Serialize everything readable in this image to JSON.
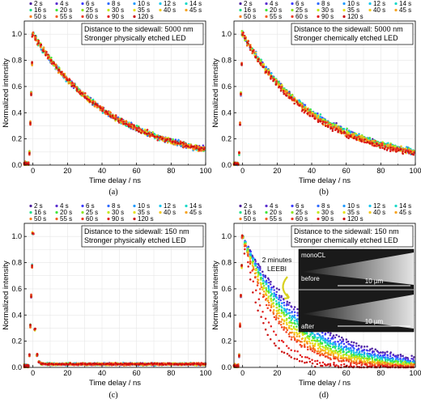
{
  "chart_data": [
    {
      "type": "scatter",
      "panel": "(a)",
      "xlabel": "Time delay / ns",
      "ylabel": "Normalized intensity",
      "xlim": [
        -5,
        100
      ],
      "ylim": [
        0,
        1.1
      ],
      "xticks": [
        "0",
        "20",
        "40",
        "60",
        "80",
        "100"
      ],
      "yticks": [
        "0.0",
        "0.2",
        "0.4",
        "0.6",
        "0.8",
        "1.0"
      ],
      "grid": true,
      "annotation": [
        "Distance to the sidewall: 5000 nm",
        "Stronger physically etched LED"
      ],
      "series_names": [
        "2 s",
        "4 s",
        "6 s",
        "8 s",
        "10 s",
        "12 s",
        "14 s",
        "16 s",
        "20 s",
        "25 s",
        "30 s",
        "35 s",
        "40 s",
        "45 s",
        "50 s",
        "55 s",
        "60 s",
        "90 s",
        "120 s"
      ],
      "decay_tau_ns": [
        47,
        47,
        47,
        47,
        47,
        47,
        47,
        47,
        47,
        47,
        47,
        47,
        47,
        47,
        47,
        47,
        47,
        47,
        47
      ],
      "noise": 0.03
    },
    {
      "type": "scatter",
      "panel": "(b)",
      "xlabel": "Time delay / ns",
      "ylabel": "Normalized intensity",
      "xlim": [
        -5,
        100
      ],
      "ylim": [
        0,
        1.1
      ],
      "xticks": [
        "0",
        "20",
        "40",
        "60",
        "80",
        "100"
      ],
      "yticks": [
        "0.0",
        "0.2",
        "0.4",
        "0.6",
        "0.8",
        "1.0"
      ],
      "grid": true,
      "annotation": [
        "Distance to the sidewall: 5000 nm",
        "Stronger chemically etched LED"
      ],
      "series_names": [
        "2 s",
        "4 s",
        "6 s",
        "8 s",
        "10 s",
        "12 s",
        "14 s",
        "16 s",
        "20 s",
        "25 s",
        "30 s",
        "35 s",
        "40 s",
        "45 s",
        "50 s",
        "55 s",
        "60 s",
        "90 s",
        "120 s"
      ],
      "decay_tau_ns": [
        44,
        44,
        44,
        44,
        44,
        44,
        44,
        44,
        44,
        44,
        43,
        43,
        43,
        43,
        42,
        42,
        42,
        41,
        41
      ],
      "noise": 0.03
    },
    {
      "type": "scatter",
      "panel": "(c)",
      "xlabel": "Time delay / ns",
      "ylabel": "Normalized intensity",
      "xlim": [
        -5,
        100
      ],
      "ylim": [
        0,
        1.1
      ],
      "xticks": [
        "0",
        "20",
        "40",
        "60",
        "80",
        "100"
      ],
      "yticks": [
        "0.0",
        "0.2",
        "0.4",
        "0.6",
        "0.8",
        "1.0"
      ],
      "grid": true,
      "annotation": [
        "Distance to the sidewall: 150 nm",
        "Stronger physically etched LED"
      ],
      "series_names": [
        "2 s",
        "4 s",
        "6 s",
        "8 s",
        "10 s",
        "12 s",
        "14 s",
        "16 s",
        "20 s",
        "25 s",
        "30 s",
        "35 s",
        "40 s",
        "45 s",
        "50 s",
        "55 s",
        "60 s",
        "90 s",
        "120 s"
      ],
      "decay_tau_ns": [
        0.9,
        0.9,
        0.9,
        0.9,
        0.9,
        0.9,
        0.9,
        0.9,
        0.9,
        0.9,
        0.9,
        0.9,
        0.9,
        0.9,
        0.9,
        0.9,
        0.9,
        0.9,
        0.9
      ],
      "tail_level": 0.025,
      "noise": 0.012
    },
    {
      "type": "scatter",
      "panel": "(d)",
      "xlabel": "Time delay / ns",
      "ylabel": "Normalized intensity",
      "xlim": [
        -5,
        100
      ],
      "ylim": [
        0,
        1.1
      ],
      "xticks": [
        "0",
        "20",
        "40",
        "60",
        "80",
        "100"
      ],
      "yticks": [
        "0.0",
        "0.2",
        "0.4",
        "0.6",
        "0.8",
        "1.0"
      ],
      "grid": true,
      "annotation": [
        "Distance to the sidewall: 150 nm",
        "Stronger chemically etched LED"
      ],
      "series_names": [
        "2 s",
        "4 s",
        "6 s",
        "8 s",
        "10 s",
        "12 s",
        "14 s",
        "16 s",
        "20 s",
        "25 s",
        "30 s",
        "35 s",
        "40 s",
        "45 s",
        "50 s",
        "55 s",
        "60 s",
        "90 s",
        "120 s"
      ],
      "decay_tau_ns": [
        38,
        36,
        34,
        32,
        31,
        30,
        29,
        28,
        27,
        26,
        25,
        24,
        23,
        22,
        21,
        20,
        19,
        14,
        11
      ],
      "noise": 0.02,
      "inset": {
        "title": "monoCL",
        "before_label": "before",
        "after_label": "after",
        "scale_bar": "10 µm",
        "arrow_label": [
          "2 minutes",
          "LEEBI"
        ]
      }
    }
  ],
  "series_colors": [
    "#4b1f9e",
    "#5a2fd0",
    "#3d3dff",
    "#2f6bff",
    "#1f9bff",
    "#17c6f0",
    "#19d9c8",
    "#1fe08a",
    "#3fe53c",
    "#8be51c",
    "#c3e81a",
    "#e8e21a",
    "#f5c81b",
    "#f7a21d",
    "#f7801f",
    "#f45d20",
    "#ee3a22",
    "#e32020",
    "#cc1010"
  ]
}
